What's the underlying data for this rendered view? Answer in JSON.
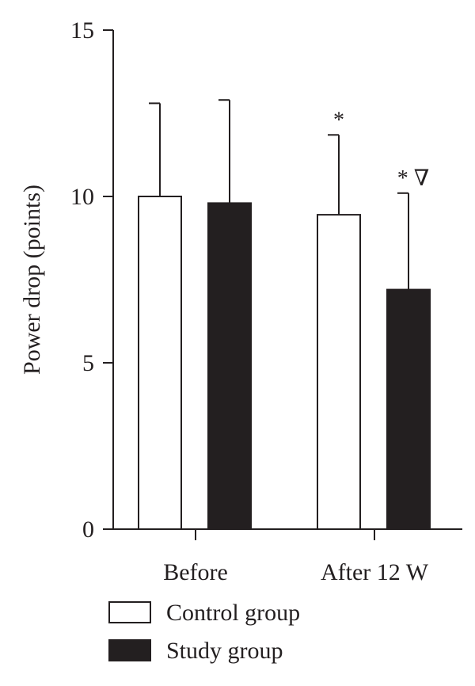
{
  "chart_data": {
    "type": "bar",
    "ylabel": "Power drop (points)",
    "ylim": [
      0,
      15
    ],
    "yticks": [
      0,
      5,
      10,
      15
    ],
    "categories": [
      "Before",
      "After 12 W"
    ],
    "series": [
      {
        "name": "Control group",
        "values": [
          10.0,
          9.45
        ],
        "error": [
          2.8,
          2.4
        ],
        "color": "#ffffff"
      },
      {
        "name": "Study group",
        "values": [
          9.8,
          7.2
        ],
        "error": [
          3.1,
          2.9
        ],
        "color": "#231f20"
      }
    ],
    "annotations": [
      {
        "category": "After 12 W",
        "series": "Control group",
        "text": "*"
      },
      {
        "category": "After 12 W",
        "series": "Study group",
        "text": "* ∇"
      }
    ],
    "legend_placement": "bottom-left",
    "grid": false
  }
}
